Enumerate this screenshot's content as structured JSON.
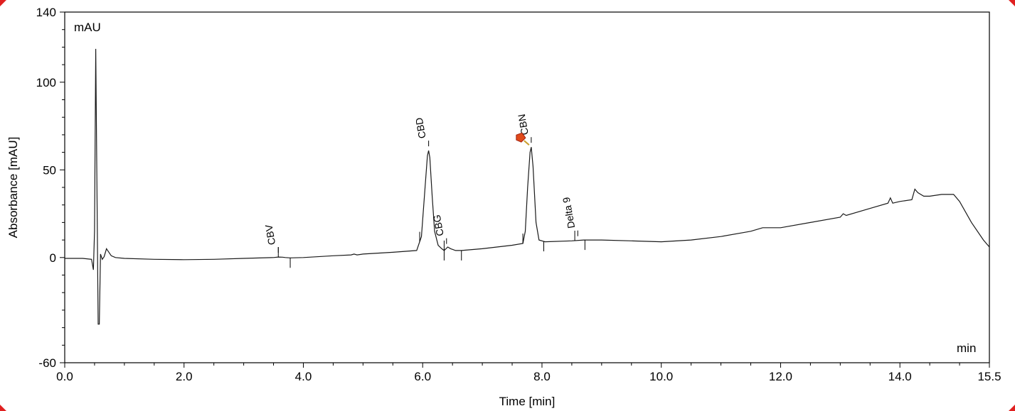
{
  "chart_data": {
    "type": "line",
    "y_unit_label": "mAU",
    "x_unit_label": "min",
    "xlabel": "Time [min]",
    "ylabel": "Absorbance [mAU]",
    "xlim": [
      0.0,
      15.5
    ],
    "ylim": [
      -60,
      140
    ],
    "x_ticks": [
      0.0,
      2.0,
      4.0,
      6.0,
      8.0,
      10.0,
      12.0,
      14.0,
      15.5
    ],
    "x_tick_labels": [
      "0.0",
      "2.0",
      "4.0",
      "6.0",
      "8.0",
      "10.0",
      "12.0",
      "14.0",
      "15.5"
    ],
    "y_ticks": [
      -60,
      0,
      50,
      100,
      140
    ],
    "y_tick_labels": [
      "-60",
      "0",
      "50",
      "100",
      "140"
    ],
    "grid": false,
    "colors": {
      "trace": "#1a1a1a",
      "frame": "#000000",
      "corner_marker": "#e02020",
      "highlight_marker": "#e04a1a"
    },
    "series": [
      {
        "x": [
          0.0,
          0.3,
          0.45,
          0.48,
          0.5,
          0.52,
          0.54,
          0.56,
          0.58,
          0.6,
          0.63,
          0.66,
          0.7,
          0.74,
          0.78,
          0.85,
          1.0,
          1.5,
          2.0,
          2.5,
          3.0,
          3.5,
          3.58,
          3.65,
          3.7,
          3.78,
          4.0,
          4.5,
          4.8,
          4.85,
          4.9,
          5.0,
          5.5,
          5.9,
          5.98,
          6.04,
          6.08,
          6.1,
          6.12,
          6.16,
          6.2,
          6.26,
          6.32,
          6.36,
          6.42,
          6.47,
          6.55,
          6.65,
          7.0,
          7.5,
          7.68,
          7.72,
          7.76,
          7.8,
          7.82,
          7.85,
          7.9,
          7.95,
          8.05,
          8.5,
          8.7,
          9.0,
          9.5,
          10.0,
          10.5,
          11.0,
          11.5,
          11.7,
          11.8,
          12.0,
          12.5,
          13.0,
          13.05,
          13.1,
          13.5,
          13.8,
          13.84,
          13.88,
          14.0,
          14.2,
          14.25,
          14.3,
          14.35,
          14.4,
          14.5,
          14.7,
          14.9,
          15.0,
          15.2,
          15.4,
          15.5
        ],
        "y": [
          -0.5,
          -0.5,
          -1,
          -7,
          15,
          119,
          40,
          -38,
          -38,
          2,
          -1,
          0.5,
          5,
          3,
          1,
          0,
          -0.5,
          -1,
          -1.2,
          -1,
          -0.5,
          0,
          0.3,
          0.2,
          0,
          -0.2,
          0,
          1,
          1.5,
          2,
          1.5,
          2,
          3,
          4,
          12,
          40,
          58,
          61,
          57,
          35,
          15,
          7,
          5,
          4,
          6,
          5,
          4,
          4,
          5,
          7,
          8,
          15,
          40,
          60,
          63,
          52,
          20,
          10,
          9,
          9.5,
          10,
          10,
          9.5,
          9,
          10,
          12,
          15,
          17,
          17,
          17,
          20,
          23,
          25,
          24,
          28,
          31,
          34,
          31,
          32,
          33,
          39,
          37,
          36,
          35,
          35,
          36,
          36,
          32,
          20,
          10,
          6
        ]
      }
    ],
    "peaks": [
      {
        "name": "CBV",
        "rt": 3.58,
        "start": 3.58,
        "end": 3.78
      },
      {
        "name": "CBD",
        "rt": 6.1,
        "start": 5.95,
        "end": 6.36
      },
      {
        "name": "CBG",
        "rt": 6.4,
        "start": 6.36,
        "end": 6.65
      },
      {
        "name": "CBN",
        "rt": 7.82,
        "start": 7.68,
        "end": 8.03
      },
      {
        "name": "Delta 9",
        "rt": 8.6,
        "start": 8.55,
        "end": 8.72
      }
    ]
  }
}
